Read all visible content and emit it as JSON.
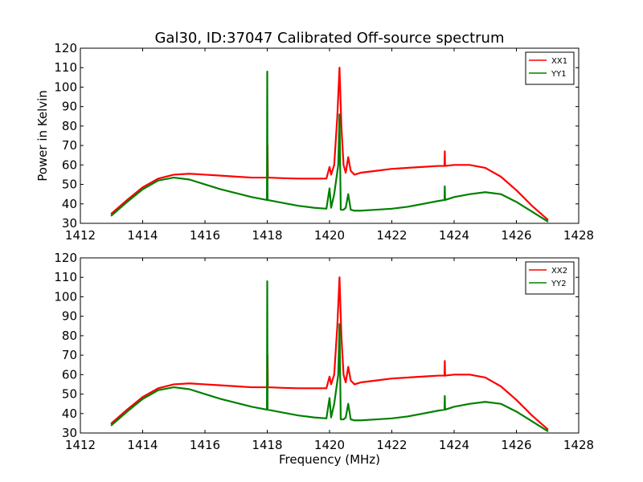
{
  "figure": {
    "title": "Gal30, ID:37047 Calibrated Off-source spectrum",
    "xlabel": "Frequency (MHz)",
    "ylabel": "Power in Kelvin"
  },
  "chart_data": [
    {
      "type": "line",
      "title": "Gal30, ID:37047 Calibrated Off-source spectrum",
      "xlabel": "",
      "ylabel": "Power in Kelvin",
      "xlim": [
        1412,
        1428
      ],
      "ylim": [
        30,
        120
      ],
      "xticks": [
        1412,
        1414,
        1416,
        1418,
        1420,
        1422,
        1424,
        1426,
        1428
      ],
      "yticks": [
        30,
        40,
        50,
        60,
        70,
        80,
        90,
        100,
        110,
        120
      ],
      "legend_position": "top-right",
      "series": [
        {
          "name": "XX1",
          "color": "#ff0000",
          "x": [
            1413.0,
            1413.5,
            1414.0,
            1414.5,
            1415.0,
            1415.5,
            1416.0,
            1416.5,
            1417.0,
            1417.5,
            1418.0,
            1418.01,
            1418.02,
            1418.5,
            1419.0,
            1419.5,
            1419.9,
            1420.0,
            1420.05,
            1420.15,
            1420.25,
            1420.32,
            1420.38,
            1420.45,
            1420.52,
            1420.6,
            1420.68,
            1420.8,
            1421.0,
            1421.5,
            1422.0,
            1422.5,
            1423.0,
            1423.5,
            1423.69,
            1423.7,
            1423.71,
            1424.0,
            1424.5,
            1425.0,
            1425.5,
            1426.0,
            1426.5,
            1427.0
          ],
          "values": [
            35,
            42,
            48.5,
            53,
            55,
            55.5,
            55,
            54.5,
            54,
            53.5,
            53.5,
            70,
            53.5,
            53.2,
            53,
            53,
            53,
            59,
            55,
            60,
            85,
            110,
            80,
            60,
            56,
            64,
            57,
            55,
            56,
            57,
            58,
            58.5,
            59,
            59.5,
            59.5,
            67,
            59.5,
            60,
            60,
            58.5,
            54,
            47,
            39,
            32
          ]
        },
        {
          "name": "YY1",
          "color": "#008000",
          "x": [
            1413.0,
            1413.5,
            1414.0,
            1414.5,
            1415.0,
            1415.5,
            1416.0,
            1416.5,
            1417.0,
            1417.5,
            1417.99,
            1418.0,
            1418.01,
            1418.5,
            1419.0,
            1419.5,
            1419.9,
            1420.0,
            1420.05,
            1420.15,
            1420.28,
            1420.32,
            1420.36,
            1420.45,
            1420.52,
            1420.6,
            1420.68,
            1420.8,
            1421.0,
            1421.5,
            1422.0,
            1422.5,
            1423.0,
            1423.5,
            1423.69,
            1423.7,
            1423.71,
            1424.0,
            1424.5,
            1425.0,
            1425.5,
            1426.0,
            1426.5,
            1427.0
          ],
          "values": [
            34,
            41,
            47.5,
            52,
            53.5,
            52.5,
            50,
            47.5,
            45.5,
            43.5,
            42,
            108,
            42,
            40.5,
            39,
            38,
            37.5,
            48,
            38,
            45,
            60,
            86,
            37,
            37,
            38,
            45,
            37,
            36.5,
            36.5,
            37,
            37.5,
            38.5,
            40,
            41.5,
            42,
            49,
            42,
            43.5,
            45,
            46,
            45,
            41,
            36,
            31
          ]
        }
      ]
    },
    {
      "type": "line",
      "title": "",
      "xlabel": "Frequency (MHz)",
      "ylabel": "",
      "xlim": [
        1412,
        1428
      ],
      "ylim": [
        30,
        120
      ],
      "xticks": [
        1412,
        1414,
        1416,
        1418,
        1420,
        1422,
        1424,
        1426,
        1428
      ],
      "yticks": [
        30,
        40,
        50,
        60,
        70,
        80,
        90,
        100,
        110,
        120
      ],
      "legend_position": "top-right",
      "series": [
        {
          "name": "XX2",
          "color": "#ff0000",
          "x": [
            1413.0,
            1413.5,
            1414.0,
            1414.5,
            1415.0,
            1415.5,
            1416.0,
            1416.5,
            1417.0,
            1417.5,
            1418.0,
            1418.01,
            1418.02,
            1418.5,
            1419.0,
            1419.5,
            1419.9,
            1420.0,
            1420.05,
            1420.15,
            1420.25,
            1420.32,
            1420.38,
            1420.45,
            1420.52,
            1420.6,
            1420.68,
            1420.8,
            1421.0,
            1421.5,
            1422.0,
            1422.5,
            1423.0,
            1423.5,
            1423.69,
            1423.7,
            1423.71,
            1424.0,
            1424.5,
            1425.0,
            1425.5,
            1426.0,
            1426.5,
            1427.0
          ],
          "values": [
            35,
            42,
            48.5,
            53,
            55,
            55.5,
            55,
            54.5,
            54,
            53.5,
            53.5,
            70,
            53.5,
            53.2,
            53,
            53,
            53,
            59,
            55,
            60,
            85,
            110,
            80,
            60,
            56,
            64,
            57,
            55,
            56,
            57,
            58,
            58.5,
            59,
            59.5,
            59.5,
            67,
            59.5,
            60,
            60,
            58.5,
            54,
            47,
            39,
            32
          ]
        },
        {
          "name": "YY2",
          "color": "#008000",
          "x": [
            1413.0,
            1413.5,
            1414.0,
            1414.5,
            1415.0,
            1415.5,
            1416.0,
            1416.5,
            1417.0,
            1417.5,
            1417.99,
            1418.0,
            1418.01,
            1418.5,
            1419.0,
            1419.5,
            1419.9,
            1420.0,
            1420.05,
            1420.15,
            1420.28,
            1420.32,
            1420.36,
            1420.45,
            1420.52,
            1420.6,
            1420.68,
            1420.8,
            1421.0,
            1421.5,
            1422.0,
            1422.5,
            1423.0,
            1423.5,
            1423.69,
            1423.7,
            1423.71,
            1424.0,
            1424.5,
            1425.0,
            1425.5,
            1426.0,
            1426.5,
            1427.0
          ],
          "values": [
            34,
            41,
            47.5,
            52,
            53.5,
            52.5,
            50,
            47.5,
            45.5,
            43.5,
            42,
            108,
            42,
            40.5,
            39,
            38,
            37.5,
            48,
            38,
            45,
            60,
            86,
            37,
            37,
            38,
            45,
            37,
            36.5,
            36.5,
            37,
            37.5,
            38.5,
            40,
            41.5,
            42,
            49,
            42,
            43.5,
            45,
            46,
            45,
            41,
            36,
            31
          ]
        }
      ]
    }
  ]
}
